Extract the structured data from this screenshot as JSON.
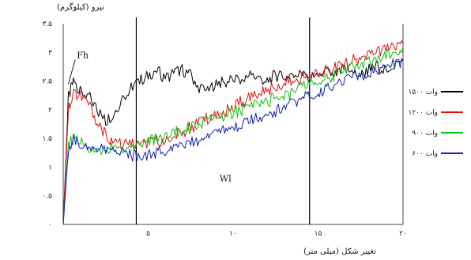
{
  "chart_data": {
    "type": "line",
    "title": "",
    "ylabel": "نیرو (کیلوگرم)",
    "xlabel": "تغییر شکل (میلی متر)",
    "x_ticks": [
      {
        "value": 5,
        "label": "۵"
      },
      {
        "value": 10,
        "label": "۱۰"
      },
      {
        "value": 15,
        "label": "۱۵"
      },
      {
        "value": 20,
        "label": "۲۰"
      }
    ],
    "y_ticks": [
      {
        "value": 0,
        "label": "۰"
      },
      {
        "value": 0.5,
        "label": "۰.۵"
      },
      {
        "value": 1,
        "label": "۱"
      },
      {
        "value": 1.5,
        "label": "۱.۵"
      },
      {
        "value": 2,
        "label": "۲"
      },
      {
        "value": 2.5,
        "label": "۲.۵"
      },
      {
        "value": 3,
        "label": "۳"
      },
      {
        "value": 3.5,
        "label": "۳.۵"
      }
    ],
    "xlim": [
      0,
      20
    ],
    "ylim": [
      0,
      3.5
    ],
    "grid": false,
    "legend_position": "right",
    "annotations": [
      {
        "text": "Fh",
        "x": 0.8,
        "y": 2.9
      },
      {
        "text": "Wl",
        "x": 9.2,
        "y": 0.75
      }
    ],
    "vlines": [
      4.3,
      14.5
    ],
    "series": [
      {
        "name": "۱۵۰۰ وات",
        "color": "#000000",
        "x": [
          0,
          0.3,
          0.6,
          1,
          1.5,
          2,
          2.5,
          3,
          3.5,
          4,
          4.5,
          5,
          5.5,
          6,
          6.5,
          7,
          7.5,
          8,
          8.5,
          9,
          9.5,
          10,
          10.5,
          11,
          11.5,
          12,
          12.5,
          13,
          13.5,
          14,
          14.5,
          15,
          15.5,
          16,
          16.5,
          17,
          17.5,
          18,
          18.5,
          19,
          19.5,
          20
        ],
        "y": [
          0,
          2.2,
          2.5,
          2.3,
          2.25,
          2.0,
          1.8,
          1.95,
          2.2,
          2.4,
          2.5,
          2.6,
          2.7,
          2.55,
          2.65,
          2.7,
          2.6,
          2.4,
          2.3,
          2.5,
          2.45,
          2.55,
          2.5,
          2.6,
          2.55,
          2.5,
          2.6,
          2.55,
          2.65,
          2.6,
          2.55,
          2.6,
          2.65,
          2.6,
          2.7,
          2.65,
          2.6,
          2.7,
          2.75,
          2.7,
          2.8,
          2.85
        ]
      },
      {
        "name": "۱۲۰۰ وات",
        "color": "#e01010",
        "x": [
          0,
          0.3,
          0.6,
          1,
          1.5,
          2,
          2.5,
          3,
          3.5,
          4,
          4.5,
          5,
          5.5,
          6,
          6.5,
          7,
          7.5,
          8,
          8.5,
          9,
          9.5,
          10,
          10.5,
          11,
          11.5,
          12,
          12.5,
          13,
          13.5,
          14,
          14.5,
          15,
          15.5,
          16,
          16.5,
          17,
          17.5,
          18,
          18.5,
          19,
          19.5,
          20
        ],
        "y": [
          0,
          2.0,
          2.3,
          2.25,
          2.1,
          1.8,
          1.55,
          1.45,
          1.4,
          1.4,
          1.38,
          1.4,
          1.45,
          1.5,
          1.55,
          1.6,
          1.7,
          1.75,
          1.85,
          1.9,
          1.95,
          2.05,
          2.15,
          2.2,
          2.3,
          2.35,
          2.4,
          2.45,
          2.5,
          2.55,
          2.6,
          2.65,
          2.7,
          2.75,
          2.8,
          2.85,
          2.9,
          2.95,
          3.0,
          3.05,
          3.1,
          3.15
        ]
      },
      {
        "name": "۹۰۰ وات",
        "color": "#10c010",
        "x": [
          0,
          0.3,
          0.6,
          1,
          1.5,
          2,
          2.5,
          3,
          3.5,
          4,
          4.5,
          5,
          5.5,
          6,
          6.5,
          7,
          7.5,
          8,
          8.5,
          9,
          9.5,
          10,
          10.5,
          11,
          11.5,
          12,
          12.5,
          13,
          13.5,
          14,
          14.5,
          15,
          15.5,
          16,
          16.5,
          17,
          17.5,
          18,
          18.5,
          19,
          19.5,
          20
        ],
        "y": [
          0,
          1.4,
          1.5,
          1.45,
          1.3,
          1.25,
          1.3,
          1.35,
          1.3,
          1.35,
          1.4,
          1.45,
          1.5,
          1.55,
          1.6,
          1.65,
          1.7,
          1.75,
          1.8,
          1.85,
          1.9,
          1.95,
          2.0,
          2.05,
          2.1,
          2.15,
          2.2,
          2.25,
          2.3,
          2.4,
          2.45,
          2.5,
          2.55,
          2.6,
          2.7,
          2.75,
          2.8,
          2.85,
          2.9,
          2.95,
          3.0,
          3.1
        ]
      },
      {
        "name": "۶۰۰ وات",
        "color": "#1020b0",
        "x": [
          0,
          0.3,
          0.6,
          1,
          1.5,
          2,
          2.5,
          3,
          3.5,
          4,
          4.5,
          5,
          5.5,
          6,
          6.5,
          7,
          7.5,
          8,
          8.5,
          9,
          9.5,
          10,
          10.5,
          11,
          11.5,
          12,
          12.5,
          13,
          13.5,
          14,
          14.5,
          15,
          15.5,
          16,
          16.5,
          17,
          17.5,
          18,
          18.5,
          19,
          19.5,
          20
        ],
        "y": [
          0,
          1.3,
          1.45,
          1.4,
          1.35,
          1.3,
          1.3,
          1.28,
          1.25,
          1.2,
          1.2,
          1.22,
          1.25,
          1.3,
          1.33,
          1.38,
          1.42,
          1.48,
          1.52,
          1.58,
          1.63,
          1.68,
          1.75,
          1.8,
          1.86,
          1.92,
          1.98,
          2.05,
          2.12,
          2.18,
          2.25,
          2.3,
          2.38,
          2.45,
          2.5,
          2.55,
          2.6,
          2.65,
          2.7,
          2.75,
          2.8,
          2.85
        ]
      }
    ]
  }
}
